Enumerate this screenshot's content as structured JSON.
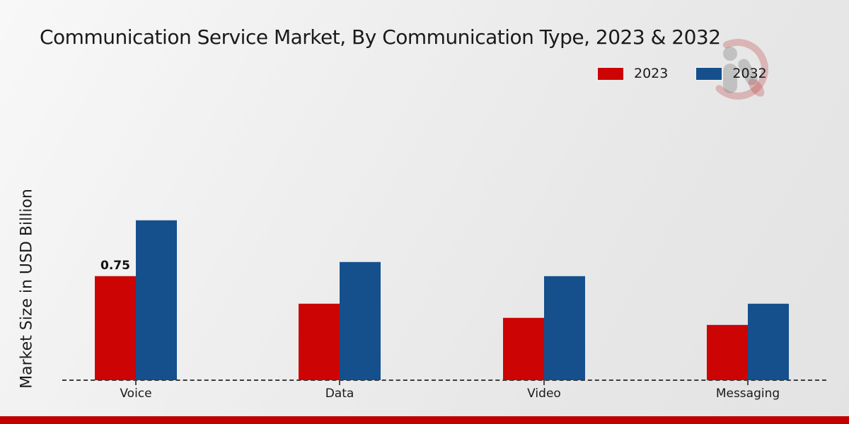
{
  "chart_data": {
    "type": "bar",
    "title": "Communication Service Market, By Communication Type, 2023 & 2032",
    "categories": [
      "Voice",
      "Data",
      "Video",
      "Messaging"
    ],
    "series": [
      {
        "name": "2023",
        "color": "#cc0404",
        "values": [
          0.75,
          0.55,
          0.45,
          0.4
        ]
      },
      {
        "name": "2032",
        "color": "#15508d",
        "values": [
          1.15,
          0.85,
          0.75,
          0.55
        ]
      }
    ],
    "xlabel": "",
    "ylabel": "Market Size in USD Billion",
    "ylim": [
      0,
      1.25
    ],
    "grid": false,
    "y_axis_ticks_visible": false,
    "baseline_style": "dashed",
    "legend_position": "top-right",
    "annotations": [
      {
        "category": "Voice",
        "series": "2023",
        "text": "0.75"
      }
    ]
  },
  "branding": {
    "watermark_icon": "person-bar-chart-logo",
    "footer_accent_color": "#c00000",
    "watermark_ring_color": "rgba(185,55,55,0.28)",
    "watermark_figure_color": "rgba(140,140,140,0.42)"
  }
}
